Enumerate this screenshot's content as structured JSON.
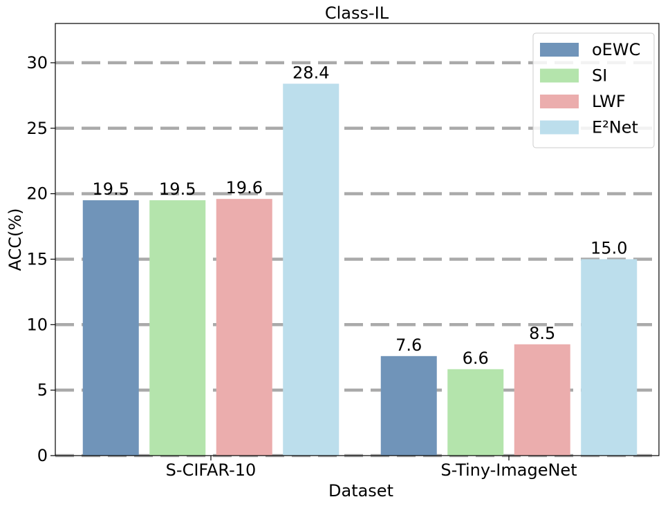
{
  "chart_data": {
    "type": "bar",
    "title": "Class-IL",
    "xlabel": "Dataset",
    "ylabel": "ACC(%)",
    "categories": [
      "S-CIFAR-10",
      "S-Tiny-ImageNet"
    ],
    "series": [
      {
        "name": "oEWC",
        "values": [
          19.5,
          7.6
        ],
        "labels": [
          "19.5",
          "7.6"
        ],
        "color": "#7094b9"
      },
      {
        "name": "SI",
        "values": [
          19.5,
          6.6
        ],
        "labels": [
          "19.5",
          "6.6"
        ],
        "color": "#b4e4ac"
      },
      {
        "name": "LWF",
        "values": [
          19.6,
          8.5
        ],
        "labels": [
          "19.6",
          "8.5"
        ],
        "color": "#ebadad"
      },
      {
        "name": "E²Net",
        "values": [
          28.4,
          15.0
        ],
        "labels": [
          "28.4",
          "15.0"
        ],
        "color": "#bcdeec"
      }
    ],
    "ylim": [
      0,
      33
    ],
    "yticks": [
      "0",
      "5",
      "10",
      "15",
      "20",
      "25",
      "30"
    ],
    "grid": true,
    "grid_color": "#aaaaaa",
    "legend": "top-right"
  }
}
